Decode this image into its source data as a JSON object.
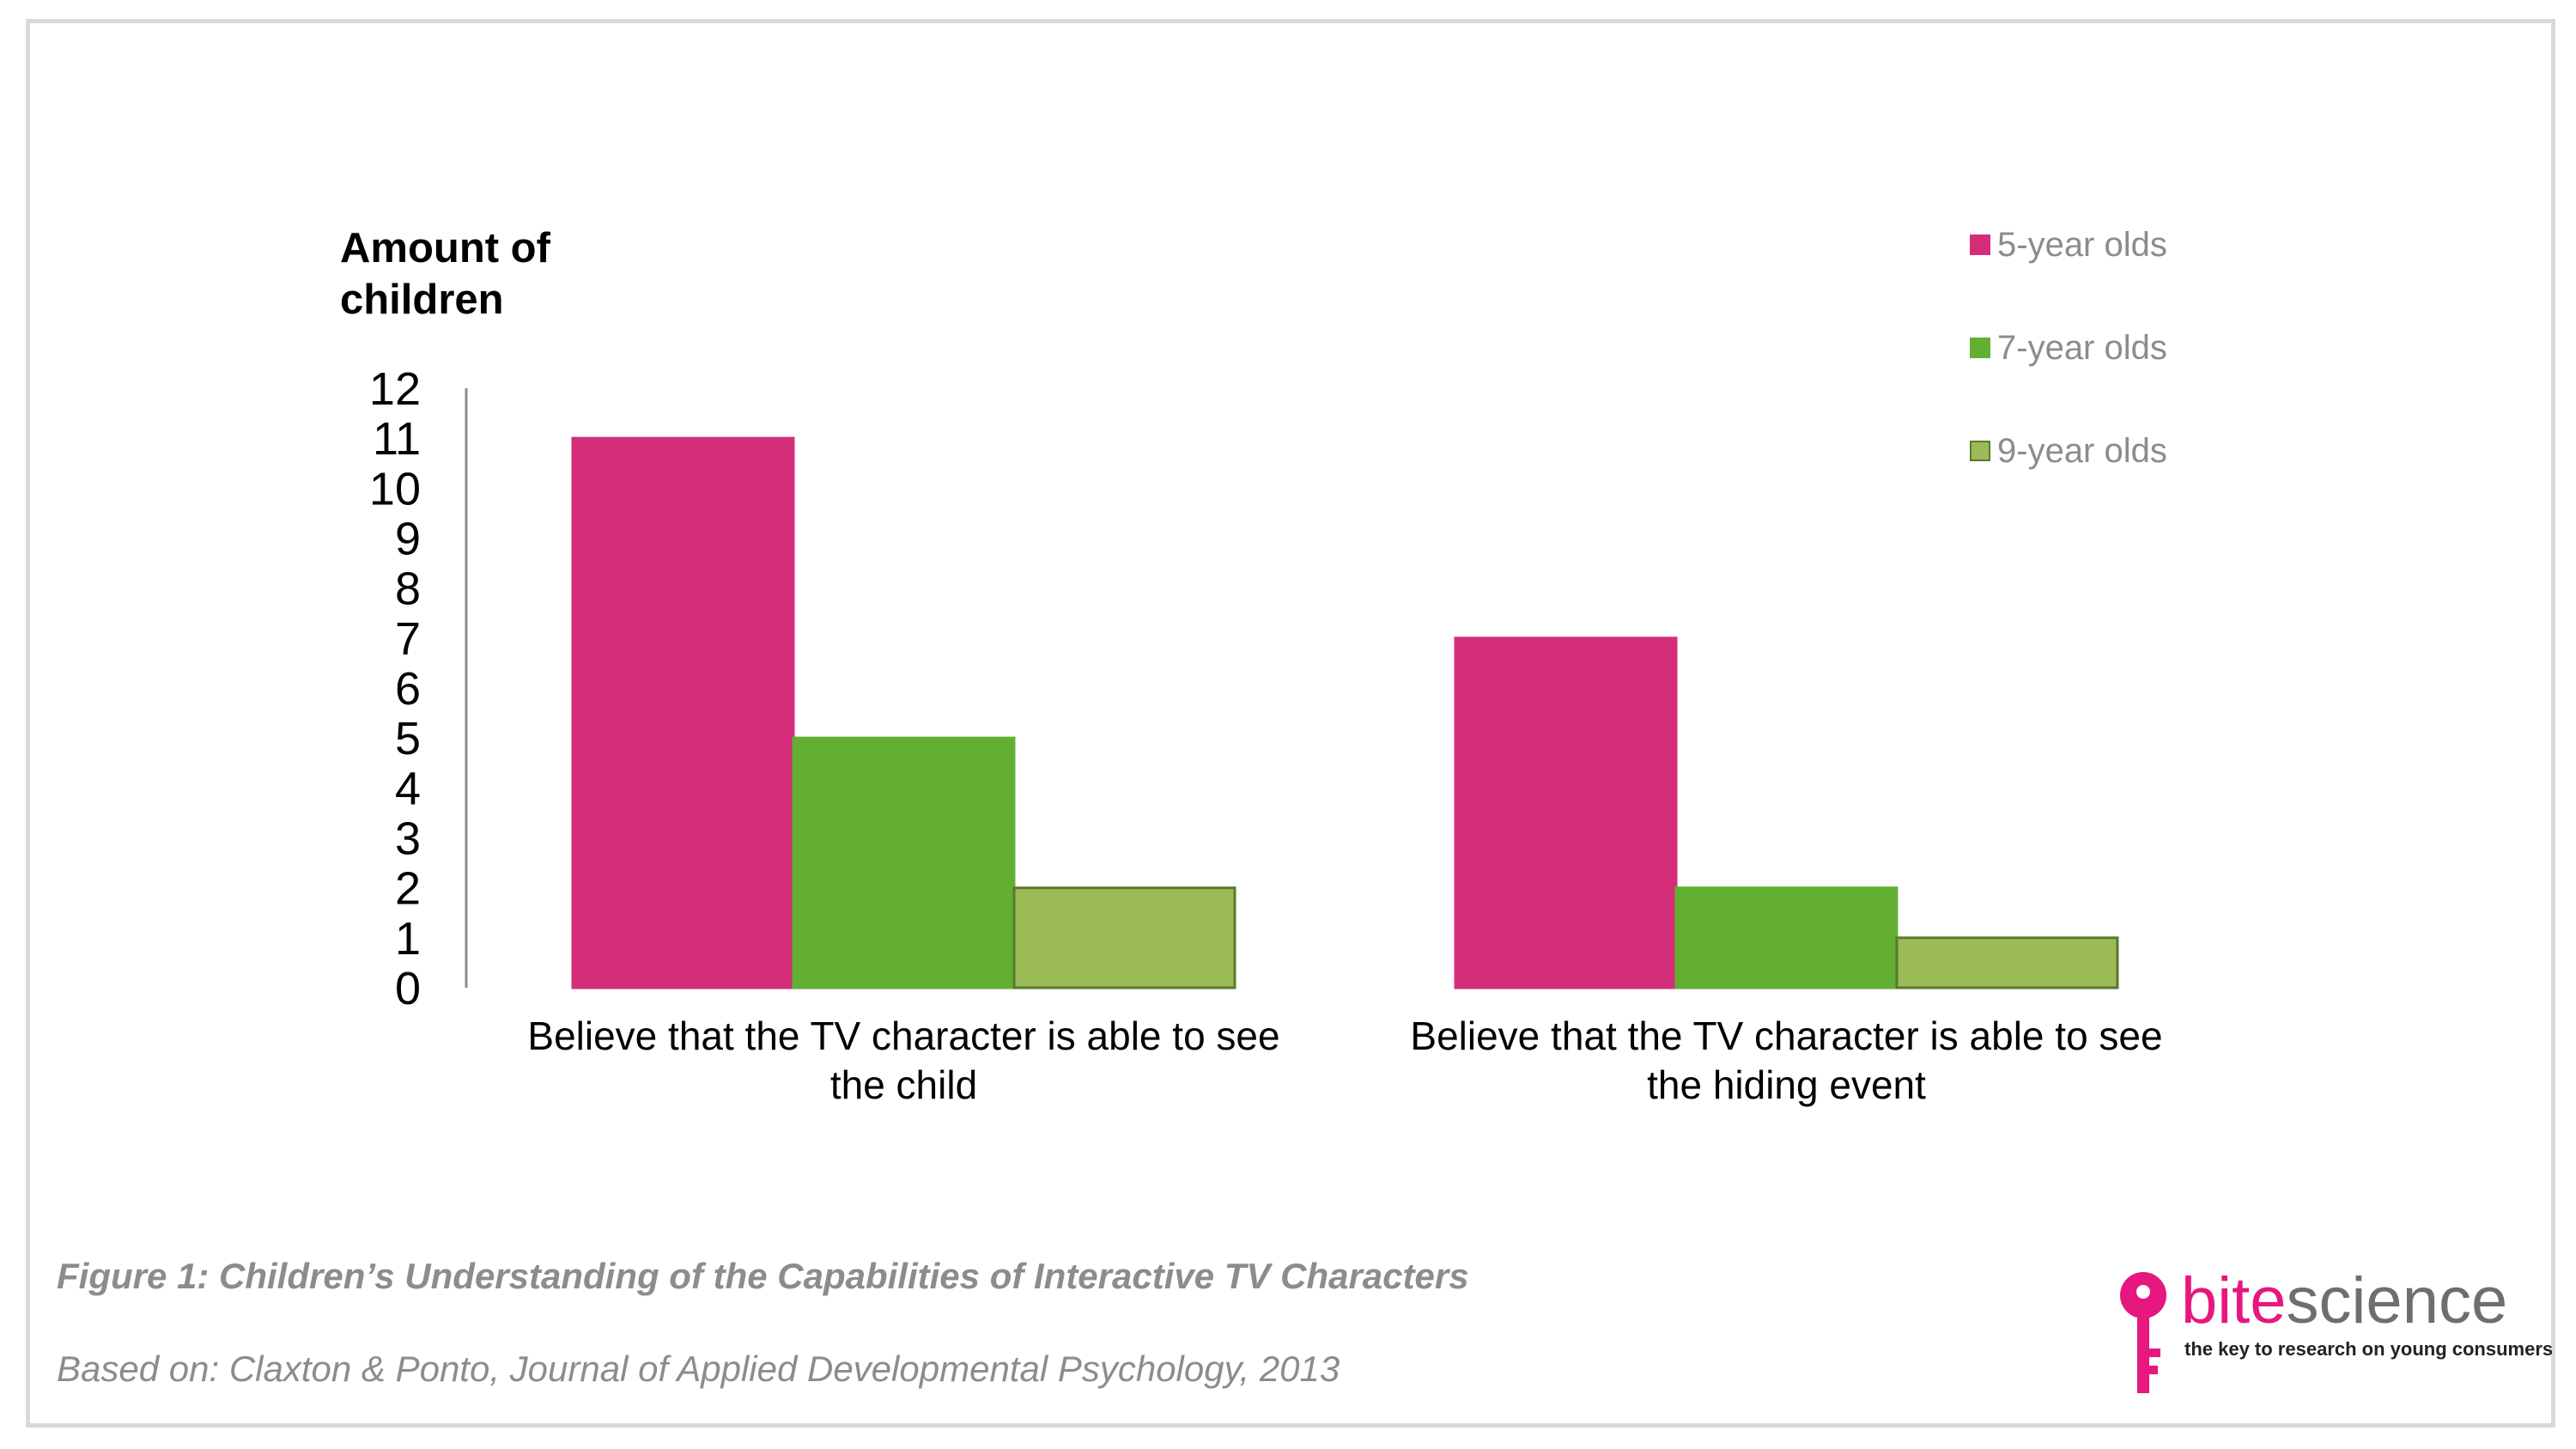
{
  "chart_data": {
    "type": "bar",
    "ylabel_lines": [
      "Amount of",
      "children"
    ],
    "ylim": [
      0,
      12
    ],
    "yticks": [
      0,
      1,
      2,
      3,
      4,
      5,
      6,
      7,
      8,
      9,
      10,
      11,
      12
    ],
    "grid": false,
    "legend_position": "top-right",
    "categories": [
      [
        "Believe that the TV character is able to see",
        "the child"
      ],
      [
        "Believe that the TV character is able to see",
        "the hiding event"
      ]
    ],
    "series": [
      {
        "name": "5-year olds",
        "color": "#d42e7b",
        "border": "#d42e7b",
        "values": [
          11,
          7
        ]
      },
      {
        "name": "7-year olds",
        "color": "#63af34",
        "border": "#63af34",
        "values": [
          5,
          2
        ]
      },
      {
        "name": "9-year olds",
        "color": "#9bbb59",
        "border": "#5b7a2a",
        "values": [
          2,
          1
        ]
      }
    ]
  },
  "caption": {
    "title": "Figure 1: Children’s Understanding of the Capabilities of Interactive TV Characters",
    "source": "Based on: Claxton & Ponto, Journal of Applied Developmental Psychology, 2013"
  },
  "logo": {
    "icon": "key-icon",
    "word_part1": "bite",
    "word_part2": "science",
    "tagline": "the key to research on young consumers",
    "colors": {
      "bite": "#e6177e",
      "science": "#6d6e71",
      "key": "#e6177e"
    }
  }
}
